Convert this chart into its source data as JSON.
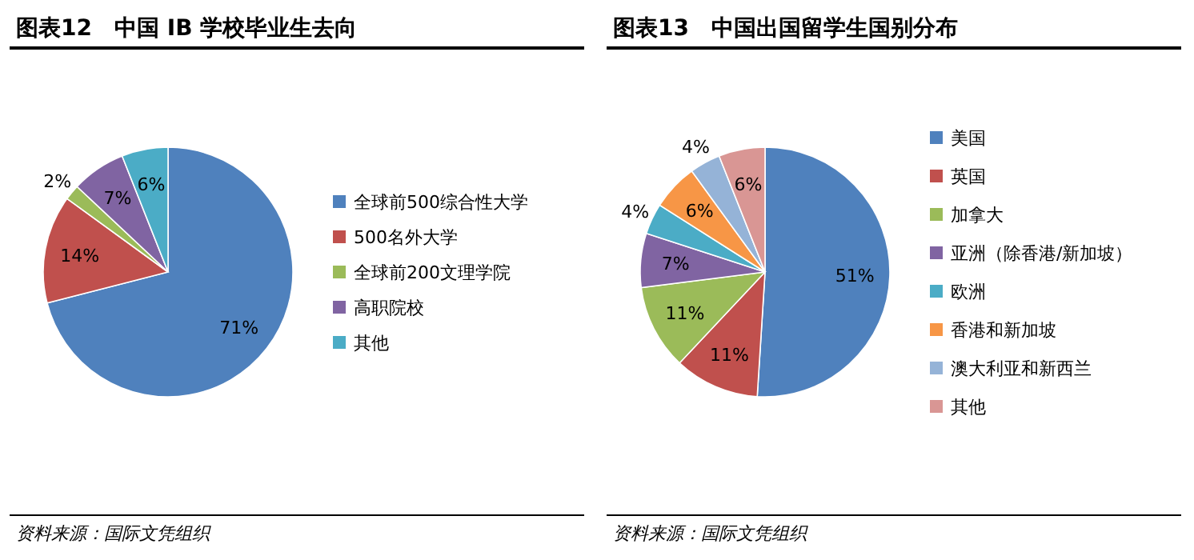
{
  "chart_data": [
    {
      "type": "pie",
      "title": "图表12　中国 IB 学校毕业生去向",
      "categories": [
        "全球前500综合性大学",
        "500名外大学",
        "全球前200文理学院",
        "高职院校",
        "其他"
      ],
      "values": [
        71,
        14,
        2,
        7,
        6
      ],
      "value_labels": [
        "71%",
        "14%",
        "2%",
        "7%",
        "6%"
      ],
      "colors": [
        "#4f81bd",
        "#c0504d",
        "#9bbb59",
        "#8064a2",
        "#4bacc6"
      ],
      "legend": "right",
      "annotations": [
        "资料来源：国际文凭组织"
      ]
    },
    {
      "type": "pie",
      "title": "图表13　中国出国留学生国别分布",
      "categories": [
        "美国",
        "英国",
        "加拿大",
        "亚洲（除香港/新加坡）",
        "欧洲",
        "香港和新加坡",
        "澳大利亚和新西兰",
        "其他"
      ],
      "values": [
        51,
        11,
        11,
        7,
        4,
        6,
        4,
        6
      ],
      "value_labels": [
        "51%",
        "11%",
        "11%",
        "7%",
        "4%",
        "6%",
        "4%",
        "6%"
      ],
      "colors": [
        "#4f81bd",
        "#c0504d",
        "#9bbb59",
        "#8064a2",
        "#4bacc6",
        "#f79646",
        "#95b3d7",
        "#d99694"
      ],
      "legend": "right",
      "annotations": [
        "资料来源：国际文凭组织"
      ]
    }
  ]
}
